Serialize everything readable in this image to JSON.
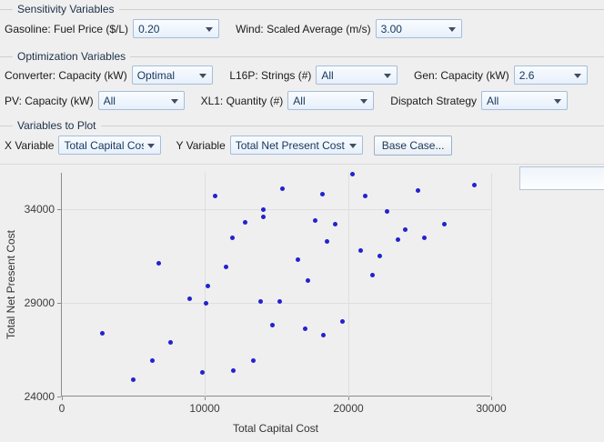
{
  "sections": {
    "sensitivity": {
      "title": "Sensitivity Variables",
      "fields": [
        {
          "name": "gasoline-fuel-price",
          "label": "Gasoline: Fuel Price ($/L)",
          "value": "0.20"
        },
        {
          "name": "wind-scaled-average",
          "label": "Wind: Scaled Average (m/s)",
          "value": "3.00"
        }
      ]
    },
    "optimization": {
      "title": "Optimization Variables",
      "rows": [
        [
          {
            "name": "converter-capacity",
            "label": "Converter: Capacity (kW)",
            "value": "Optimal"
          },
          {
            "name": "l16p-strings",
            "label": "L16P: Strings (#)",
            "value": "All"
          },
          {
            "name": "gen-capacity",
            "label": "Gen: Capacity (kW)",
            "value": "2.6"
          }
        ],
        [
          {
            "name": "pv-capacity",
            "label": "PV: Capacity (kW)",
            "value": "All"
          },
          {
            "name": "xl1-quantity",
            "label": "XL1: Quantity (#)",
            "value": "All"
          },
          {
            "name": "dispatch-strategy",
            "label": "Dispatch Strategy",
            "value": "All"
          }
        ]
      ]
    },
    "plot_vars": {
      "title": "Variables to Plot",
      "x_label": "X Variable",
      "x_value": "Total Capital Cost",
      "y_label": "Y Variable",
      "y_value": "Total Net Present Cost",
      "base_case_button": "Base Case..."
    }
  },
  "chart_data": {
    "type": "scatter",
    "title": "",
    "xlabel": "Total Capital Cost",
    "ylabel": "Total Net Present Cost",
    "xlim": [
      0,
      30000
    ],
    "ylim": [
      24000,
      35950
    ],
    "x_ticks": [
      0,
      10000,
      20000,
      30000
    ],
    "y_ticks": [
      24000,
      29000,
      34000
    ],
    "grid": true,
    "legend_position": "top-right-empty",
    "marker_color": "#2222cf",
    "points": [
      [
        6800,
        31100
      ],
      [
        10700,
        34700
      ],
      [
        15400,
        35100
      ],
      [
        18200,
        34800
      ],
      [
        14100,
        34000
      ],
      [
        14100,
        33600
      ],
      [
        12800,
        33300
      ],
      [
        17700,
        33400
      ],
      [
        19100,
        33200
      ],
      [
        11900,
        32500
      ],
      [
        18500,
        32300
      ],
      [
        16500,
        31300
      ],
      [
        11500,
        30900
      ],
      [
        17200,
        30200
      ],
      [
        10200,
        29900
      ],
      [
        20300,
        35900
      ],
      [
        21200,
        34700
      ],
      [
        24900,
        35000
      ],
      [
        28800,
        35300
      ],
      [
        22700,
        33900
      ],
      [
        24000,
        32900
      ],
      [
        23500,
        32400
      ],
      [
        25300,
        32500
      ],
      [
        26700,
        33200
      ],
      [
        20900,
        31800
      ],
      [
        22200,
        31500
      ],
      [
        21700,
        30500
      ],
      [
        8900,
        29200
      ],
      [
        2800,
        27400
      ],
      [
        7600,
        26900
      ],
      [
        6300,
        25900
      ],
      [
        5000,
        24900
      ],
      [
        10100,
        29000
      ],
      [
        13900,
        29100
      ],
      [
        15200,
        29100
      ],
      [
        14700,
        27800
      ],
      [
        17000,
        27600
      ],
      [
        18300,
        27300
      ],
      [
        19600,
        28000
      ],
      [
        13400,
        25900
      ],
      [
        12000,
        25400
      ],
      [
        9800,
        25300
      ]
    ]
  },
  "colors": {
    "background": "#efefef",
    "marker": "#2222cf",
    "dropdown_border": "#a5bdd9",
    "group_title": "#1c3048",
    "gridline": "#dedede",
    "axis": "#8c8c8c"
  }
}
